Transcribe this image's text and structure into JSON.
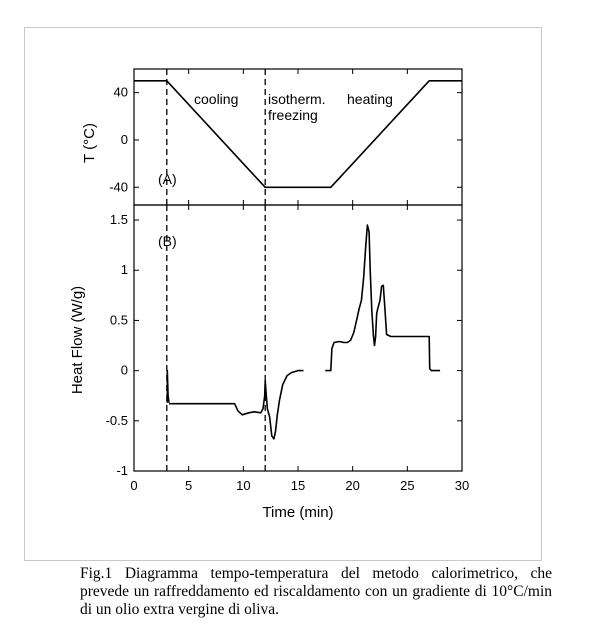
{
  "chart_data": [
    {
      "id": "A",
      "type": "line",
      "panel_label": "(A)",
      "ylabel": "T (°C)",
      "xlim": [
        0,
        30
      ],
      "ylim": [
        -55,
        60
      ],
      "yticks": [
        40,
        0,
        -40
      ],
      "ytick_labels": [
        "40",
        "0",
        "-40"
      ],
      "series": [
        {
          "x": [
            0,
            3,
            12,
            18,
            27,
            30
          ],
          "y": [
            50,
            50,
            -40,
            -40,
            50,
            50
          ]
        }
      ],
      "annotations": [
        {
          "text": "cooling",
          "x": 5.5,
          "y": 33
        },
        {
          "text": "isotherm.",
          "x": 12.4,
          "y": 33
        },
        {
          "text": "heating",
          "x": 19.5,
          "y": 33
        },
        {
          "text": "freezing",
          "x": 12.4,
          "y": 19
        }
      ],
      "vlines": [
        3,
        12
      ]
    },
    {
      "id": "B",
      "type": "line",
      "panel_label": "(B)",
      "ylabel": "Heat Flow (W/g)",
      "xlabel": "Time (min)",
      "xlim": [
        0,
        30
      ],
      "ylim": [
        -1,
        1.65
      ],
      "yticks": [
        1.5,
        1,
        0.5,
        0,
        -0.5,
        -1
      ],
      "ytick_labels": [
        "1.5",
        "1",
        "0.5",
        "0",
        "-0.5",
        "-1"
      ],
      "xticks": [
        0,
        5,
        10,
        15,
        20,
        25,
        30
      ],
      "xtick_labels": [
        "0",
        "5",
        "10",
        "15",
        "20",
        "25",
        "30"
      ],
      "series": [
        {
          "segments": [
            {
              "x": [
                3.05,
                3.05,
                3.12,
                3.2
              ],
              "y": [
                -0.32,
                0.0,
                -0.25,
                -0.32
              ]
            },
            {
              "x": [
                3.2,
                5.0,
                7.0,
                9.2,
                9.5,
                9.9,
                10.5,
                11.0,
                11.6,
                11.8,
                11.95,
                12.0,
                12.1,
                12.2,
                12.4,
                12.6,
                12.8,
                12.95,
                13.1,
                13.3,
                13.6,
                14.0,
                14.4,
                15.0,
                15.5
              ],
              "y": [
                -0.33,
                -0.33,
                -0.33,
                -0.33,
                -0.4,
                -0.44,
                -0.42,
                -0.41,
                -0.42,
                -0.38,
                -0.25,
                -0.1,
                -0.25,
                -0.38,
                -0.46,
                -0.65,
                -0.68,
                -0.6,
                -0.45,
                -0.3,
                -0.14,
                -0.05,
                -0.02,
                0.0,
                0.0
              ]
            },
            {
              "x": [
                17.5,
                18.0,
                18.1,
                18.3,
                18.8,
                19.2,
                19.5,
                19.8,
                20.1,
                20.4,
                20.6,
                20.8,
                21.0,
                21.2,
                21.35,
                21.5,
                21.6,
                21.75,
                21.9,
                22.0,
                22.1,
                22.2,
                22.3,
                22.5,
                22.65,
                22.8,
                22.95,
                23.1,
                23.3,
                23.5,
                24.0,
                25.0,
                26.0,
                27.0,
                27.05,
                27.2,
                28.0
              ],
              "y": [
                0.0,
                0.0,
                0.22,
                0.28,
                0.29,
                0.28,
                0.28,
                0.3,
                0.38,
                0.52,
                0.62,
                0.7,
                0.92,
                1.25,
                1.45,
                1.38,
                1.0,
                0.6,
                0.35,
                0.25,
                0.34,
                0.57,
                0.62,
                0.7,
                0.84,
                0.85,
                0.62,
                0.36,
                0.35,
                0.34,
                0.34,
                0.34,
                0.34,
                0.34,
                0.02,
                0.0,
                0.0
              ]
            }
          ]
        }
      ],
      "vlines": [
        3,
        12
      ]
    }
  ],
  "caption": "Fig.1 Diagramma tempo-temperatura del metodo calorimetrico, che prevede un raffreddamento ed riscaldamento con un gradiente di 10°C/min di un olio extra vergine di oliva."
}
